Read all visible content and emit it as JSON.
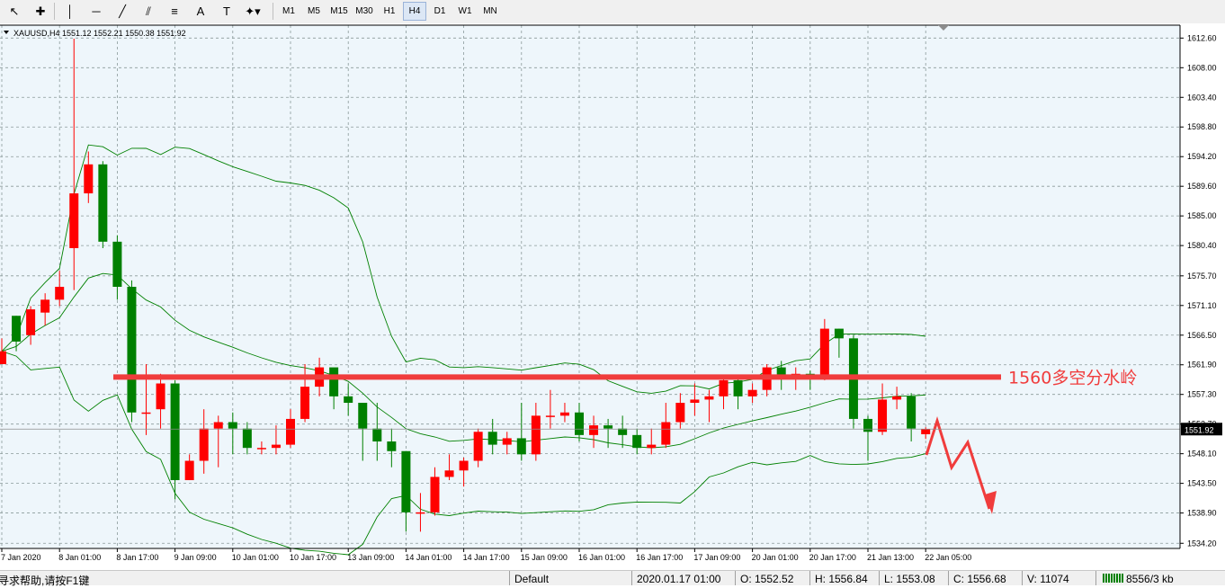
{
  "toolbar": {
    "tools": [
      {
        "name": "cursor-icon"
      },
      {
        "name": "crosshair-icon"
      },
      {
        "name": "vertical-line-icon"
      },
      {
        "name": "horizontal-line-icon"
      },
      {
        "name": "trendline-icon"
      },
      {
        "name": "equidistant-channel-icon",
        "sub": "E"
      },
      {
        "name": "fibonacci-icon",
        "sub": "F"
      },
      {
        "name": "text-icon"
      },
      {
        "name": "text-label-icon"
      },
      {
        "name": "arrows-shapes-icon"
      }
    ],
    "timeframes": [
      "M1",
      "M5",
      "M15",
      "M30",
      "H1",
      "H4",
      "D1",
      "W1",
      "MN"
    ],
    "active_timeframe": "H4"
  },
  "chart": {
    "header": "XAUUSD,H4  1551.12 1552.21 1550.38 1551.92",
    "annotation": "1560多空分水岭",
    "current_price": "1551.92",
    "colors": {
      "background": "#eef6fb",
      "grid": "#8a9a9a",
      "bull": "#ff0000",
      "bear": "#008000",
      "band": "#008000",
      "annotation": "#f03c3c",
      "price_tag": "#000000"
    }
  },
  "chart_data": {
    "type": "candlestick",
    "symbol": "XAUUSD",
    "timeframe": "H4",
    "y_ticks": [
      "1612.60",
      "1608.00",
      "1603.40",
      "1598.80",
      "1594.20",
      "1589.60",
      "1585.00",
      "1580.40",
      "1575.70",
      "1571.10",
      "1566.50",
      "1561.90",
      "1557.30",
      "1552.70",
      "1548.10",
      "1543.50",
      "1538.90",
      "1534.20"
    ],
    "x_ticks": [
      "7 Jan 2020",
      "8 Jan 01:00",
      "8 Jan 17:00",
      "9 Jan 09:00",
      "10 Jan 01:00",
      "10 Jan 17:00",
      "13 Jan 09:00",
      "14 Jan 01:00",
      "14 Jan 17:00",
      "15 Jan 09:00",
      "16 Jan 01:00",
      "16 Jan 17:00",
      "17 Jan 09:00",
      "20 Jan 01:00",
      "20 Jan 17:00",
      "21 Jan 13:00",
      "22 Jan 05:00"
    ],
    "ylim": [
      1533.4,
      1614.6
    ],
    "level_line": 1560,
    "candles": [
      [
        1562,
        1564,
        1564,
        1566
      ],
      [
        1569.5,
        1565.5,
        1569.5,
        1564
      ],
      [
        1566.5,
        1570.5,
        1571,
        1565
      ],
      [
        1570,
        1572,
        1573,
        1568
      ],
      [
        1572,
        1574,
        1576.5,
        1571
      ],
      [
        1580,
        1588.5,
        1612.5,
        1573.5
      ],
      [
        1588.5,
        1593,
        1595,
        1587
      ],
      [
        1593,
        1581,
        1593.5,
        1580
      ],
      [
        1581,
        1574,
        1582,
        1572
      ],
      [
        1574,
        1554.5,
        1575,
        1553
      ],
      [
        1554.5,
        1554.5,
        1562,
        1551
      ],
      [
        1555,
        1559,
        1560.5,
        1552
      ],
      [
        1559,
        1544,
        1559.5,
        1541
      ],
      [
        1544,
        1547,
        1548,
        1544
      ],
      [
        1547,
        1552,
        1555,
        1545
      ],
      [
        1552,
        1553,
        1554,
        1546
      ],
      [
        1553,
        1552,
        1554.5,
        1548
      ],
      [
        1552,
        1549,
        1553,
        1548
      ],
      [
        1549,
        1549,
        1550,
        1548
      ],
      [
        1549,
        1549.5,
        1552.5,
        1548
      ],
      [
        1549.5,
        1553.5,
        1555,
        1549
      ],
      [
        1553.5,
        1558.5,
        1562,
        1553
      ],
      [
        1558.5,
        1561.5,
        1563,
        1557
      ],
      [
        1561.5,
        1557,
        1560,
        1555
      ],
      [
        1557,
        1556,
        1559,
        1554
      ],
      [
        1556,
        1552,
        1556,
        1547
      ],
      [
        1552,
        1550,
        1556,
        1547
      ],
      [
        1550,
        1548.5,
        1552,
        1546
      ],
      [
        1548.5,
        1539,
        1548.5,
        1536
      ],
      [
        1539,
        1539,
        1542,
        1536
      ],
      [
        1539,
        1544.5,
        1546,
        1538.5
      ],
      [
        1544.5,
        1545.5,
        1548,
        1544
      ],
      [
        1545.5,
        1547,
        1547.5,
        1543
      ],
      [
        1547,
        1551.5,
        1552,
        1546
      ],
      [
        1551.5,
        1549.5,
        1553.5,
        1548
      ],
      [
        1549.5,
        1550.5,
        1551.5,
        1548
      ],
      [
        1550.5,
        1548,
        1556,
        1547
      ],
      [
        1548,
        1554,
        1556,
        1547
      ],
      [
        1554,
        1554,
        1558,
        1552
      ],
      [
        1554,
        1554.5,
        1556,
        1553
      ],
      [
        1554.5,
        1551,
        1556,
        1550
      ],
      [
        1551,
        1552.5,
        1554,
        1549
      ],
      [
        1552.5,
        1552,
        1553.5,
        1549
      ],
      [
        1552,
        1551,
        1554,
        1549
      ],
      [
        1551,
        1549,
        1552,
        1548
      ],
      [
        1549,
        1549.5,
        1552,
        1548
      ],
      [
        1549.5,
        1553,
        1556,
        1549
      ],
      [
        1553,
        1556,
        1557.5,
        1552
      ],
      [
        1556,
        1556.5,
        1559,
        1554
      ],
      [
        1556.5,
        1557,
        1558,
        1553
      ],
      [
        1557,
        1559.5,
        1560,
        1555
      ],
      [
        1559.5,
        1557,
        1560,
        1555
      ],
      [
        1557,
        1558,
        1559,
        1556
      ],
      [
        1558,
        1561.5,
        1562,
        1557
      ],
      [
        1561.5,
        1560,
        1562.5,
        1558
      ],
      [
        1560,
        1560.5,
        1561.5,
        1558
      ],
      [
        1560.5,
        1560,
        1561,
        1558
      ],
      [
        1560,
        1567.5,
        1569,
        1559.5
      ],
      [
        1567.5,
        1566,
        1567.5,
        1563
      ],
      [
        1566,
        1553.5,
        1566.5,
        1552
      ],
      [
        1553.5,
        1551.5,
        1554,
        1547
      ],
      [
        1551.5,
        1556.5,
        1559,
        1551
      ],
      [
        1556.5,
        1557,
        1558.5,
        1555
      ],
      [
        1557,
        1552,
        1557.5,
        1550
      ],
      [
        1551.12,
        1551.92,
        1552.21,
        1550.38
      ]
    ]
  }
}
